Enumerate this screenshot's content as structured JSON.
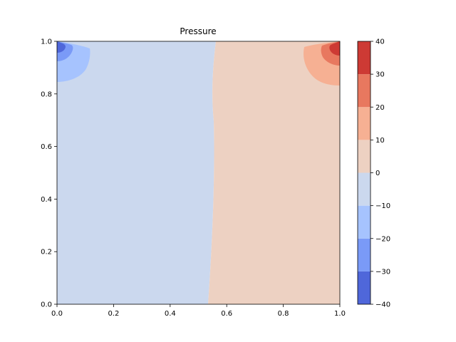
{
  "chart_data": {
    "type": "heatmap",
    "subtype": "filled-contour",
    "title": "Pressure",
    "xlabel": "",
    "ylabel": "",
    "xlim": [
      0.0,
      1.0
    ],
    "ylim": [
      0.0,
      1.0
    ],
    "x_ticks": [
      "0.0",
      "0.2",
      "0.4",
      "0.6",
      "0.8",
      "1.0"
    ],
    "y_ticks": [
      "0.0",
      "0.2",
      "0.4",
      "0.6",
      "0.8",
      "1.0"
    ],
    "grid": false,
    "colormap": "coolwarm",
    "colorbar": {
      "position": "right",
      "levels": [
        -40,
        -30,
        -20,
        -10,
        0,
        10,
        20,
        30,
        40
      ],
      "tick_labels": [
        "−40",
        "−30",
        "−20",
        "−10",
        "0",
        "10",
        "20",
        "30",
        "40"
      ],
      "colors": [
        "#4f67da",
        "#7a9af7",
        "#a6c3fe",
        "#cbd8ee",
        "#edd1c2",
        "#f6b093",
        "#e8785f",
        "#cd3a34"
      ]
    },
    "regions": [
      {
        "band": [
          -10,
          0
        ],
        "description": "x from 0 to about 0.55, full height"
      },
      {
        "band": [
          0,
          10
        ],
        "description": "x from about 0.55 to 1, full height"
      },
      {
        "band": [
          -20,
          -10
        ],
        "center": [
          0.0,
          1.0
        ],
        "extent": [
          0.12,
          0.15
        ]
      },
      {
        "band": [
          -30,
          -20
        ],
        "center": [
          0.0,
          1.0
        ],
        "extent": [
          0.06,
          0.07
        ]
      },
      {
        "band": [
          -40,
          -30
        ],
        "center": [
          0.0,
          1.0
        ],
        "extent": [
          0.03,
          0.035
        ]
      },
      {
        "band": [
          10,
          20
        ],
        "center": [
          1.0,
          1.0
        ],
        "extent": [
          0.14,
          0.17
        ]
      },
      {
        "band": [
          20,
          30
        ],
        "center": [
          1.0,
          1.0
        ],
        "extent": [
          0.07,
          0.09
        ]
      },
      {
        "band": [
          30,
          40
        ],
        "center": [
          1.0,
          1.0
        ],
        "extent": [
          0.035,
          0.04
        ]
      }
    ]
  }
}
